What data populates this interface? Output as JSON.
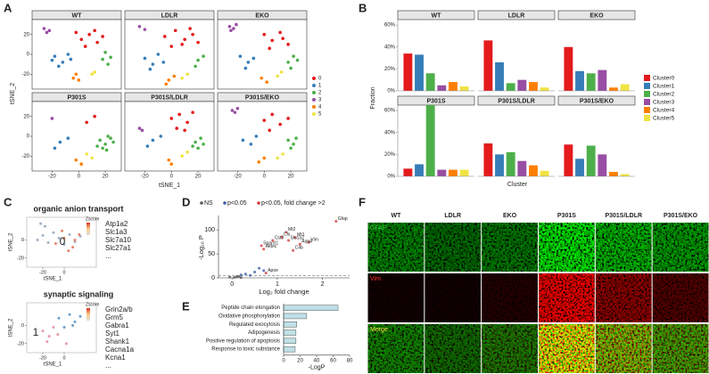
{
  "chart_data": [
    {
      "type": "scatter",
      "panel": "A",
      "xlabel": "tSNE_1",
      "ylabel": "tSNE_2",
      "xlim": [
        -35,
        32
      ],
      "ylim": [
        -35,
        35
      ],
      "xticks": [
        -20,
        0,
        20
      ],
      "yticks": [
        -20,
        0,
        20
      ],
      "series": [
        {
          "name": "0",
          "color": "#e41a1c"
        },
        {
          "name": "1",
          "color": "#377eb8"
        },
        {
          "name": "2",
          "color": "#4daf4a"
        },
        {
          "name": "3",
          "color": "#984ea3"
        },
        {
          "name": "4",
          "color": "#ff7f00"
        },
        {
          "name": "5",
          "color": "#f0e442"
        }
      ],
      "panels": [
        {
          "title": "WT",
          "x": [
            [
              2,
              8,
              14,
              5,
              12,
              18,
              -2
            ],
            [
              -18,
              -12,
              -8,
              -15,
              -6,
              -20
            ],
            [
              18,
              22,
              20,
              24
            ],
            [
              -26,
              -22,
              -24
            ],
            [
              -4,
              0,
              -2
            ],
            [
              10,
              12
            ]
          ],
          "y": [
            [
              15,
              20,
              12,
              8,
              24,
              18,
              22
            ],
            [
              -2,
              -8,
              0,
              -12,
              -5,
              -6
            ],
            [
              -5,
              -10,
              2,
              -3
            ],
            [
              26,
              24,
              22
            ],
            [
              -24,
              -26,
              -20
            ],
            [
              -20,
              -18
            ]
          ]
        },
        {
          "title": "LDLR",
          "x": [
            [
              -5,
              3,
              10,
              16,
              0,
              8,
              14,
              20
            ],
            [
              -20,
              -14,
              -10,
              -16,
              -6
            ],
            [
              20,
              24,
              18
            ],
            [
              -24,
              -20
            ],
            [
              -2,
              2,
              -4
            ],
            [
              8,
              12
            ]
          ],
          "y": [
            [
              18,
              24,
              15,
              20,
              8,
              10,
              26,
              12
            ],
            [
              -4,
              -10,
              0,
              -15,
              -8
            ],
            [
              -6,
              -2,
              -12
            ],
            [
              28,
              25
            ],
            [
              -26,
              -22,
              -30
            ],
            [
              -24,
              -20
            ]
          ]
        },
        {
          "title": "EKO",
          "x": [
            [
              0,
              6,
              12,
              18,
              4,
              14
            ],
            [
              -18,
              -12,
              -8,
              -14
            ],
            [
              18,
              22,
              20,
              25
            ],
            [
              -26,
              -23,
              -21,
              -25
            ],
            [
              -2,
              2
            ],
            [
              10,
              13
            ]
          ],
          "y": [
            [
              20,
              14,
              22,
              10,
              6,
              16
            ],
            [
              -2,
              -8,
              -4,
              -14
            ],
            [
              -8,
              -2,
              -14,
              -6
            ],
            [
              28,
              26,
              30,
              24
            ],
            [
              -24,
              -28
            ],
            [
              -22,
              -18
            ]
          ]
        },
        {
          "title": "P301S",
          "x": [
            [
              6,
              12
            ],
            [
              -14,
              -8,
              -18
            ],
            [
              16,
              20,
              24,
              18,
              22,
              26,
              14,
              21
            ],
            [
              -20
            ],
            [
              -2,
              2
            ],
            [
              6,
              10
            ]
          ],
          "y": [
            [
              14,
              20
            ],
            [
              -6,
              -2,
              -12
            ],
            [
              -4,
              -8,
              -2,
              -12,
              0,
              -6,
              -10,
              -14
            ],
            [
              18
            ],
            [
              -24,
              -28
            ],
            [
              -18,
              -22
            ]
          ]
        },
        {
          "title": "P301S/LDLR",
          "x": [
            [
              0,
              6,
              12,
              4,
              10,
              16
            ],
            [
              -14,
              -8,
              -18
            ],
            [
              18,
              22,
              20,
              24,
              16
            ],
            [
              -24,
              -22
            ],
            [
              -2,
              0
            ],
            [
              8,
              12
            ]
          ],
          "y": [
            [
              18,
              22,
              14,
              8,
              6,
              24
            ],
            [
              -4,
              0,
              -10
            ],
            [
              -6,
              -2,
              -12,
              -8,
              -10
            ],
            [
              8,
              6
            ],
            [
              -24,
              -28
            ],
            [
              -20,
              -16
            ]
          ]
        },
        {
          "title": "P301S/EKO",
          "x": [
            [
              0,
              6,
              12,
              18,
              4
            ],
            [
              -16,
              -10,
              -6
            ],
            [
              18,
              22,
              20,
              24
            ],
            [
              -24,
              -22,
              -20
            ],
            [
              -4,
              0
            ],
            [
              10,
              14
            ]
          ],
          "y": [
            [
              16,
              22,
              12,
              18,
              6
            ],
            [
              -4,
              -8,
              0
            ],
            [
              -4,
              -8,
              -12,
              -2
            ],
            [
              26,
              24,
              28
            ],
            [
              -26,
              -22
            ],
            [
              -22,
              -18
            ]
          ]
        }
      ]
    },
    {
      "type": "bar",
      "panel": "B",
      "ylabel": "Fraction",
      "xlabel": "Cluster",
      "ylim": [
        0,
        65
      ],
      "yticks": [
        {
          "value": 0,
          "label": "0%"
        },
        {
          "value": 20,
          "label": "20%"
        },
        {
          "value": 40,
          "label": "40%"
        },
        {
          "value": 60,
          "label": "60%"
        }
      ],
      "series": [
        {
          "name": "Cluster0",
          "color": "#e41a1c"
        },
        {
          "name": "Cluster1",
          "color": "#377eb8"
        },
        {
          "name": "Cluster2",
          "color": "#4daf4a"
        },
        {
          "name": "Cluster3",
          "color": "#984ea3"
        },
        {
          "name": "Cluster4",
          "color": "#ff7f00"
        },
        {
          "name": "Cluster5",
          "color": "#f0e442"
        }
      ],
      "panels": [
        {
          "title": "WT",
          "values": [
            34,
            33,
            16,
            5,
            8,
            4
          ]
        },
        {
          "title": "LDLR",
          "values": [
            46,
            26,
            7,
            10,
            8,
            3
          ]
        },
        {
          "title": "EKO",
          "values": [
            40,
            18,
            16,
            19,
            3,
            6
          ]
        },
        {
          "title": "P301S",
          "values": [
            7,
            11,
            65,
            6,
            6,
            6
          ]
        },
        {
          "title": "P301S/LDLR",
          "values": [
            30,
            20,
            22,
            14,
            10,
            5
          ]
        },
        {
          "title": "P301S/EKO",
          "values": [
            29,
            16,
            28,
            20,
            4,
            2
          ]
        }
      ]
    },
    {
      "type": "featureplot",
      "panel": "C",
      "xlabel": "tSNE_1",
      "ylabel": "tSNE_2",
      "legend_title": "Zscore",
      "xlim": [
        -35,
        30
      ],
      "ylim": [
        -30,
        25
      ],
      "xticks": [
        -20,
        0
      ],
      "yticks": [
        -20,
        0
      ],
      "panels": [
        {
          "title": "organic anion transport",
          "cluster_label": "0",
          "genes": [
            "Atp1a2",
            "Slc1a3",
            "Slc7a10",
            "Slc27a1",
            "..."
          ],
          "series": [
            {
              "color": "#9fb3c8",
              "x": [
                -25,
                -20,
                -15,
                -10,
                -5,
                0,
                5,
                10,
                15,
                -22,
                -18
              ],
              "y": [
                0,
                5,
                -3,
                8,
                2,
                -5,
                6,
                -2,
                4,
                18,
                15
              ]
            },
            {
              "color": "#e8846a",
              "x": [
                -8,
                0,
                8,
                14,
                4,
                -2,
                10
              ],
              "y": [
                -4,
                2,
                -8,
                6,
                -12,
                10,
                0
              ]
            }
          ]
        },
        {
          "title": "synaptic signaling",
          "cluster_label": "1",
          "genes": [
            "Grin2a/b",
            "Grm5",
            "Gabra1",
            "Syt1",
            "Shank1",
            "Cacna1a",
            "Kcna1",
            "..."
          ],
          "series": [
            {
              "color": "#6f9cc9",
              "x": [
                -5,
                5,
                10,
                15,
                0,
                8
              ],
              "y": [
                8,
                12,
                4,
                10,
                -2,
                0
              ]
            },
            {
              "color": "#e89aa6",
              "x": [
                -20,
                -14,
                -10,
                -16,
                -6,
                2
              ],
              "y": [
                -6,
                -12,
                -2,
                -18,
                -10,
                -20
              ]
            }
          ]
        }
      ]
    },
    {
      "type": "volcano",
      "panel": "D",
      "xlabel": "Log₂ fold change",
      "ylabel": "-Log₁₀ P",
      "xlim": [
        -0.3,
        2.6
      ],
      "ylim": [
        0,
        130
      ],
      "xticks": [
        0,
        1,
        2
      ],
      "yticks": [
        0,
        50,
        100
      ],
      "hline": 5,
      "series": [
        {
          "name": "NS",
          "color": "#555555",
          "x": [
            0.05,
            0.1,
            0.2,
            -0.05,
            0.15
          ],
          "y": [
            1,
            2,
            0.5,
            1.5,
            3
          ]
        },
        {
          "name": "p<0.05",
          "color": "#3b5ba5",
          "x": [
            0.3,
            0.5,
            0.4,
            0.6,
            0.7,
            0.2
          ],
          "y": [
            8,
            12,
            5,
            20,
            15,
            6
          ]
        },
        {
          "name": "p<0.05, fold change >2",
          "color": "#d23b3b",
          "x": [
            1.2,
            1.4,
            1.1,
            1.25,
            1.7,
            0.9,
            1.5,
            0.7,
            0.65,
            1.35,
            2.3,
            0.75
          ],
          "y": [
            95,
            84,
            85,
            78,
            74,
            78,
            70,
            60,
            67,
            57,
            118,
            10
          ],
          "labels": [
            "Mt2",
            "Mt1",
            "Clu",
            "Slc1a2",
            "Vim",
            "Cst3",
            "Aqp4",
            "Aldoc",
            "Sparcl1",
            "C4b",
            "Gfap",
            "Apoe"
          ]
        }
      ]
    },
    {
      "type": "barh",
      "panel": "E",
      "xlabel": "-LogP",
      "color": "#bfe0e6",
      "xlim": [
        0,
        80
      ],
      "xticks": [
        0,
        20,
        40,
        60,
        80
      ],
      "categories": [
        "Peptide chain elongation",
        "Oxidative phosphorylation",
        "Regulated exocytosis",
        "Adipogenesis",
        "Positive regulation of apoptosis",
        "Response to toxic substance"
      ],
      "values": [
        66,
        28,
        16,
        15,
        15,
        14
      ]
    }
  ],
  "figure_f": {
    "panel": "F",
    "columns": [
      "WT",
      "LDLR",
      "EKO",
      "P301S",
      "P301S/LDLR",
      "P301S/EKO"
    ],
    "rows": [
      "GFAP",
      "Vim",
      "Merge"
    ]
  }
}
